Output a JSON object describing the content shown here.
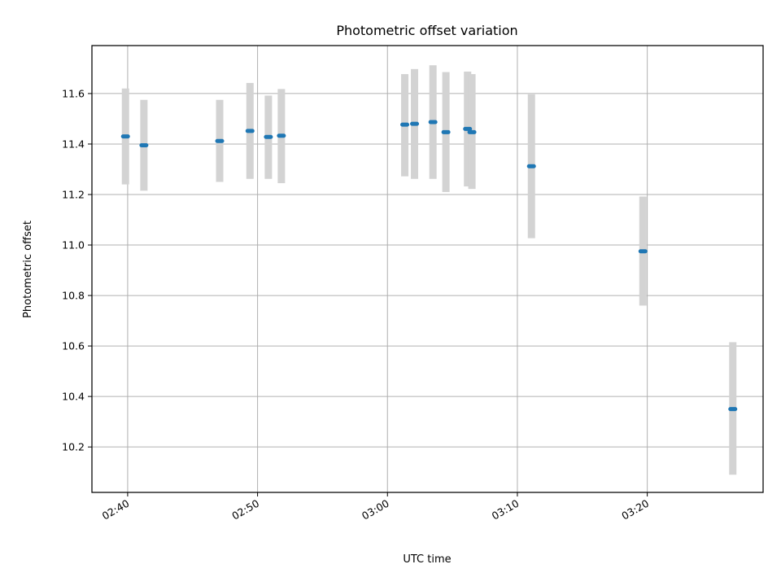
{
  "chart_data": {
    "type": "scatter",
    "title": "Photometric offset variation",
    "xlabel": "UTC time",
    "ylabel": "Photometric offset",
    "xlim": [
      "02:37:15",
      "03:28:55"
    ],
    "ylim": [
      10.02,
      11.79
    ],
    "grid": true,
    "x_ticks": [
      "02:40",
      "02:50",
      "03:00",
      "03:10",
      "03:20"
    ],
    "y_ticks": [
      "10.2",
      "10.4",
      "10.6",
      "10.8",
      "11.0",
      "11.2",
      "11.4",
      "11.6"
    ],
    "colors": {
      "points": "#1f77b4",
      "errorbars": "#d3d3d3"
    },
    "series": [
      {
        "points": [
          {
            "x": "02:39:50",
            "y": 11.43,
            "ymin": 11.24,
            "ymax": 11.62
          },
          {
            "x": "02:41:15",
            "y": 11.395,
            "ymin": 11.215,
            "ymax": 11.575
          },
          {
            "x": "02:47:05",
            "y": 11.412,
            "ymin": 11.25,
            "ymax": 11.575
          },
          {
            "x": "02:49:25",
            "y": 11.452,
            "ymin": 11.262,
            "ymax": 11.642
          },
          {
            "x": "02:50:50",
            "y": 11.428,
            "ymin": 11.262,
            "ymax": 11.592
          },
          {
            "x": "02:51:50",
            "y": 11.433,
            "ymin": 11.245,
            "ymax": 11.618
          },
          {
            "x": "03:01:20",
            "y": 11.477,
            "ymin": 11.272,
            "ymax": 11.677
          },
          {
            "x": "03:02:05",
            "y": 11.48,
            "ymin": 11.262,
            "ymax": 11.697
          },
          {
            "x": "03:03:30",
            "y": 11.487,
            "ymin": 11.262,
            "ymax": 11.712
          },
          {
            "x": "03:04:30",
            "y": 11.447,
            "ymin": 11.21,
            "ymax": 11.685
          },
          {
            "x": "03:06:10",
            "y": 11.46,
            "ymin": 11.232,
            "ymax": 11.687
          },
          {
            "x": "03:06:30",
            "y": 11.447,
            "ymin": 11.222,
            "ymax": 11.677
          },
          {
            "x": "03:11:05",
            "y": 11.312,
            "ymin": 11.027,
            "ymax": 11.597
          },
          {
            "x": "03:19:40",
            "y": 10.975,
            "ymin": 10.76,
            "ymax": 11.192
          },
          {
            "x": "03:26:35",
            "y": 10.35,
            "ymin": 10.09,
            "ymax": 10.615
          }
        ]
      }
    ]
  }
}
